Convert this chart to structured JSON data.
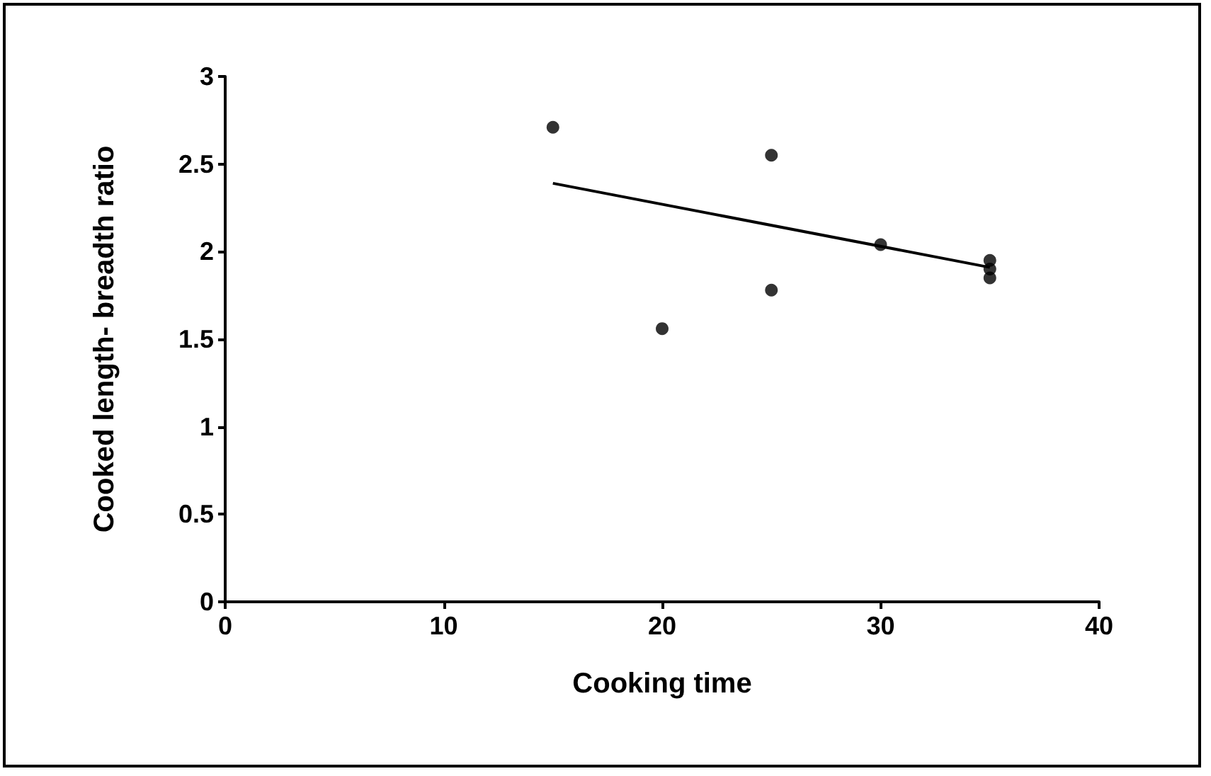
{
  "chart_data": {
    "type": "scatter",
    "xlabel": "Cooking time",
    "ylabel": "Cooked length- breadth ratio",
    "xlim": [
      0,
      40
    ],
    "xticks": [
      0,
      10,
      20,
      30,
      40
    ],
    "ylim": [
      0,
      3
    ],
    "yticks": [
      0,
      0.5,
      1,
      1.5,
      2,
      2.5,
      3
    ],
    "grid": false,
    "marker": "circle",
    "series": [
      {
        "color": "#000000",
        "x": [
          15,
          20,
          25,
          25,
          30,
          35,
          35,
          35
        ],
        "values": [
          2.71,
          1.56,
          2.55,
          1.78,
          2.04,
          1.95,
          1.9,
          1.85
        ]
      },
      {
        "type": "line",
        "color": "#000000",
        "line_style": "solid",
        "marker": "none",
        "x": [
          15,
          35
        ],
        "values": [
          2.39,
          1.91
        ]
      }
    ]
  }
}
